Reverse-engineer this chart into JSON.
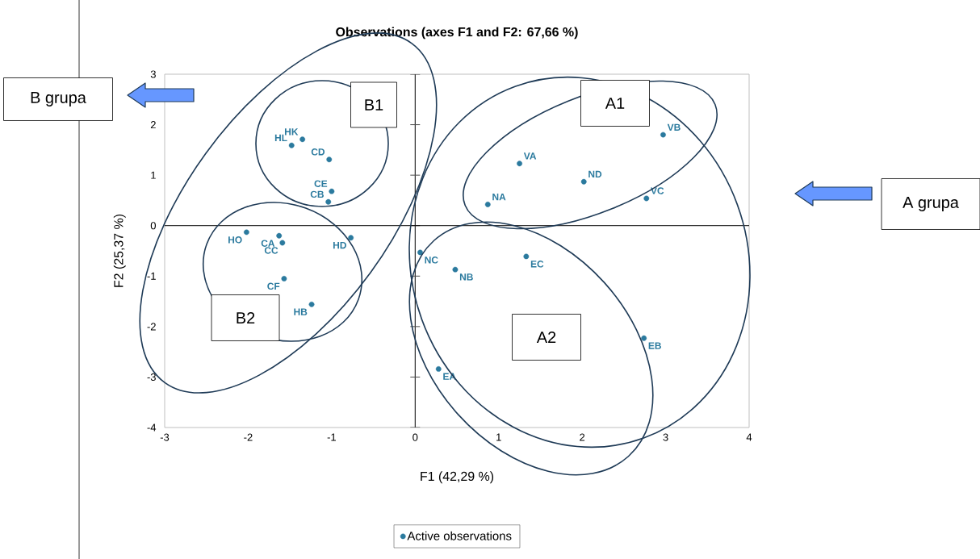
{
  "chart_data": {
    "type": "scatter",
    "title": "Observations (axes F1 and F2: 67,66 %)",
    "xlabel": "F1 (42,29 %)",
    "ylabel": "F2 (25,37 %)",
    "xlim": [
      -3,
      4
    ],
    "ylim": [
      -4,
      3
    ],
    "xticks": [
      -3,
      -2,
      -1,
      0,
      1,
      2,
      3,
      4
    ],
    "yticks": [
      -4,
      -3,
      -2,
      -1,
      0,
      1,
      2,
      3
    ],
    "series": [
      {
        "name": "Active observations",
        "color": "#2b7a9e",
        "x": [
          -1.48,
          -1.35,
          -1.03,
          -1.0,
          -1.04,
          -2.02,
          -1.63,
          -1.59,
          -0.77,
          -1.57,
          -1.24,
          0.87,
          1.25,
          2.02,
          2.77,
          2.97,
          0.06,
          0.48,
          1.33,
          2.74,
          0.28
        ],
        "values": [
          1.59,
          1.71,
          1.31,
          0.68,
          0.47,
          -0.13,
          -0.2,
          -0.34,
          -0.24,
          -1.05,
          -1.56,
          0.42,
          1.23,
          0.87,
          0.54,
          1.8,
          -0.53,
          -0.87,
          -0.61,
          -2.23,
          -2.84
        ]
      }
    ],
    "marker": "circle",
    "legend": "bottom",
    "ref_lines": [
      {
        "axis": "x",
        "value": 0,
        "color": "#000000"
      },
      {
        "axis": "y",
        "value": 0,
        "color": "#000000"
      }
    ],
    "annotations": [
      {
        "text": "HL",
        "x": -1.48,
        "y": 1.59
      },
      {
        "text": "HK",
        "x": -1.35,
        "y": 1.71
      },
      {
        "text": "CD",
        "x": -1.03,
        "y": 1.31
      },
      {
        "text": "CE",
        "x": -1.0,
        "y": 0.68
      },
      {
        "text": "CB",
        "x": -1.04,
        "y": 0.47
      },
      {
        "text": "HO",
        "x": -2.02,
        "y": -0.13
      },
      {
        "text": "CA",
        "x": -1.63,
        "y": -0.2
      },
      {
        "text": "CC",
        "x": -1.59,
        "y": -0.34
      },
      {
        "text": "HD",
        "x": -0.77,
        "y": -0.24
      },
      {
        "text": "CF",
        "x": -1.57,
        "y": -1.05
      },
      {
        "text": "HB",
        "x": -1.24,
        "y": -1.56
      },
      {
        "text": "NA",
        "x": 0.87,
        "y": 0.42
      },
      {
        "text": "VA",
        "x": 1.25,
        "y": 1.23
      },
      {
        "text": "ND",
        "x": 2.02,
        "y": 0.87
      },
      {
        "text": "VC",
        "x": 2.77,
        "y": 0.54
      },
      {
        "text": "VB",
        "x": 2.97,
        "y": 1.8
      },
      {
        "text": "NC",
        "x": 0.06,
        "y": -0.53
      },
      {
        "text": "NB",
        "x": 0.48,
        "y": -0.87
      },
      {
        "text": "EC",
        "x": 1.33,
        "y": -0.61
      },
      {
        "text": "EB",
        "x": 2.74,
        "y": -2.23
      },
      {
        "text": "EA",
        "x": 0.28,
        "y": -2.84
      },
      "B1",
      "B2",
      "A1",
      "A2",
      "A grupa",
      "B grupa"
    ]
  }
}
